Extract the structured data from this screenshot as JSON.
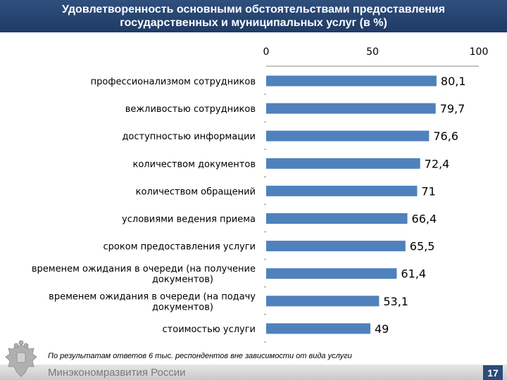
{
  "header": {
    "title": "Удовлетворенность основными обстоятельствами предоставления государственных и муниципальных услуг (в %)"
  },
  "chart_data": {
    "type": "bar",
    "orientation": "horizontal",
    "categories": [
      "профессионализмом сотрудников",
      "вежливостью сотрудников",
      "доступностью информации",
      "количеством документов",
      "количеством обращений",
      "условиями ведения приема",
      "сроком предоставления услуги",
      "временем ожидания в очереди (на получение документов)",
      "временем ожидания в очереди (на подачу документов)",
      "стоимостью услуги"
    ],
    "values": [
      80.1,
      79.7,
      76.6,
      72.4,
      71,
      66.4,
      65.5,
      61.4,
      53.1,
      49
    ],
    "value_labels": [
      "80,1",
      "79,7",
      "76,6",
      "72,4",
      "71",
      "66,4",
      "65,5",
      "61,4",
      "53,1",
      "49"
    ],
    "xlim": [
      0,
      100
    ],
    "xticks": [
      "0",
      "50",
      "100"
    ],
    "x_axis_position": "top",
    "bar_color": "#4f81bd",
    "grid": false,
    "legend": "none"
  },
  "footer": {
    "note": "По результатам ответов 6 тыс. респондентов вне зависимости от вида услуги",
    "ministry": "Минэкономразвития России",
    "page_number": "17"
  },
  "colors": {
    "header_bg": "#1f3b66",
    "page_number_bg": "#2c4a78",
    "footer_bg": "#d9d9d9"
  },
  "icons": {
    "emblem": "russian-coat-of-arms-icon"
  }
}
